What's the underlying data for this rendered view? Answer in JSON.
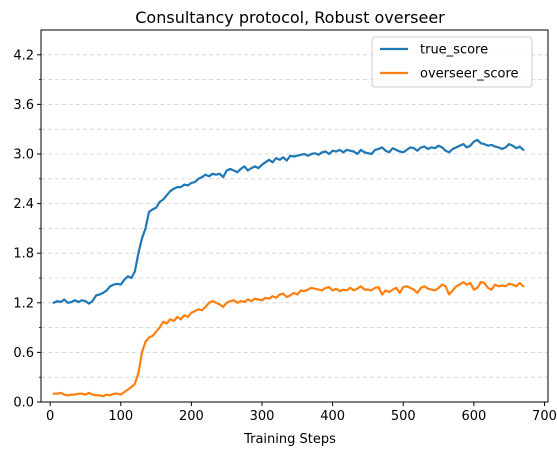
{
  "chart_data": {
    "type": "line",
    "title": "Consultancy protocol, Robust overseer",
    "xlabel": "Training Steps",
    "ylabel": "",
    "xlim": [
      -13,
      705
    ],
    "ylim": [
      0.0,
      4.5
    ],
    "xticks": [
      0,
      100,
      200,
      300,
      400,
      500,
      600,
      700
    ],
    "xtick_labels": [
      "0",
      "100",
      "200",
      "300",
      "400",
      "500",
      "600",
      "700"
    ],
    "yticks": [
      0.0,
      0.6,
      1.2,
      1.8,
      2.4,
      3.0,
      3.6,
      4.2
    ],
    "ytick_labels": [
      "0.0",
      "0.6",
      "1.2",
      "1.8",
      "2.4",
      "3.0",
      "3.6",
      "4.2"
    ],
    "y_minor_ticks": [
      0.3,
      0.9,
      1.5,
      2.1,
      2.7,
      3.3,
      3.9
    ],
    "grid": "horizontal dashed",
    "legend_position": "top-right",
    "series": [
      {
        "name": "true_score",
        "color": "#1f77b4",
        "x": [
          5,
          10,
          15,
          20,
          25,
          30,
          35,
          40,
          45,
          50,
          55,
          60,
          65,
          70,
          75,
          80,
          85,
          90,
          95,
          100,
          105,
          110,
          115,
          120,
          125,
          130,
          135,
          140,
          145,
          150,
          155,
          160,
          165,
          170,
          175,
          180,
          185,
          190,
          195,
          200,
          205,
          210,
          215,
          220,
          225,
          230,
          235,
          240,
          245,
          250,
          255,
          260,
          265,
          270,
          275,
          280,
          285,
          290,
          295,
          300,
          305,
          310,
          315,
          320,
          325,
          330,
          335,
          340,
          345,
          350,
          355,
          360,
          365,
          370,
          375,
          380,
          385,
          390,
          395,
          400,
          405,
          410,
          415,
          420,
          425,
          430,
          435,
          440,
          445,
          450,
          455,
          460,
          465,
          470,
          475,
          480,
          485,
          490,
          495,
          500,
          505,
          510,
          515,
          520,
          525,
          530,
          535,
          540,
          545,
          550,
          555,
          560,
          565,
          570,
          575,
          580,
          585,
          590,
          595,
          600,
          605,
          610,
          615,
          620,
          625,
          630,
          635,
          640,
          645,
          650,
          655,
          660,
          665,
          670
        ],
        "y": [
          1.2,
          1.22,
          1.21,
          1.24,
          1.2,
          1.21,
          1.23,
          1.21,
          1.23,
          1.22,
          1.19,
          1.22,
          1.29,
          1.3,
          1.32,
          1.35,
          1.4,
          1.42,
          1.43,
          1.42,
          1.48,
          1.52,
          1.5,
          1.58,
          1.8,
          1.98,
          2.1,
          2.3,
          2.33,
          2.35,
          2.42,
          2.45,
          2.5,
          2.55,
          2.58,
          2.6,
          2.6,
          2.63,
          2.62,
          2.65,
          2.66,
          2.7,
          2.72,
          2.75,
          2.73,
          2.76,
          2.75,
          2.76,
          2.72,
          2.8,
          2.82,
          2.8,
          2.78,
          2.82,
          2.85,
          2.8,
          2.83,
          2.85,
          2.83,
          2.87,
          2.9,
          2.93,
          2.9,
          2.95,
          2.93,
          2.96,
          2.92,
          2.98,
          2.97,
          2.98,
          2.99,
          3.0,
          2.98,
          3.0,
          3.01,
          2.99,
          3.02,
          3.03,
          3.0,
          3.04,
          3.03,
          3.05,
          3.02,
          3.05,
          3.04,
          3.03,
          3.0,
          3.05,
          3.02,
          3.01,
          3.0,
          3.05,
          3.06,
          3.08,
          3.04,
          3.02,
          3.07,
          3.05,
          3.03,
          3.02,
          3.05,
          3.08,
          3.07,
          3.04,
          3.08,
          3.09,
          3.06,
          3.08,
          3.07,
          3.1,
          3.08,
          3.04,
          3.02,
          3.06,
          3.08,
          3.1,
          3.12,
          3.08,
          3.1,
          3.15,
          3.17,
          3.13,
          3.12,
          3.1,
          3.11,
          3.09,
          3.08,
          3.06,
          3.08,
          3.12,
          3.1,
          3.07,
          3.09,
          3.05
        ]
      },
      {
        "name": "overseer_score",
        "color": "#ff7f0e",
        "x": [
          5,
          10,
          15,
          20,
          25,
          30,
          35,
          40,
          45,
          50,
          55,
          60,
          65,
          70,
          75,
          80,
          85,
          90,
          95,
          100,
          105,
          110,
          115,
          120,
          125,
          130,
          135,
          140,
          145,
          150,
          155,
          160,
          165,
          170,
          175,
          180,
          185,
          190,
          195,
          200,
          205,
          210,
          215,
          220,
          225,
          230,
          235,
          240,
          245,
          250,
          255,
          260,
          265,
          270,
          275,
          280,
          285,
          290,
          295,
          300,
          305,
          310,
          315,
          320,
          325,
          330,
          335,
          340,
          345,
          350,
          355,
          360,
          365,
          370,
          375,
          380,
          385,
          390,
          395,
          400,
          405,
          410,
          415,
          420,
          425,
          430,
          435,
          440,
          445,
          450,
          455,
          460,
          465,
          470,
          475,
          480,
          485,
          490,
          495,
          500,
          505,
          510,
          515,
          520,
          525,
          530,
          535,
          540,
          545,
          550,
          555,
          560,
          565,
          570,
          575,
          580,
          585,
          590,
          595,
          600,
          605,
          610,
          615,
          620,
          625,
          630,
          635,
          640,
          645,
          650,
          655,
          660,
          665,
          670
        ],
        "y": [
          0.1,
          0.1,
          0.11,
          0.09,
          0.08,
          0.09,
          0.09,
          0.1,
          0.1,
          0.09,
          0.11,
          0.09,
          0.08,
          0.08,
          0.07,
          0.09,
          0.08,
          0.1,
          0.1,
          0.09,
          0.12,
          0.15,
          0.18,
          0.22,
          0.35,
          0.6,
          0.73,
          0.78,
          0.8,
          0.85,
          0.9,
          0.97,
          0.95,
          1.0,
          0.98,
          1.03,
          1.0,
          1.05,
          1.03,
          1.08,
          1.1,
          1.12,
          1.11,
          1.15,
          1.2,
          1.22,
          1.2,
          1.18,
          1.15,
          1.2,
          1.22,
          1.23,
          1.2,
          1.22,
          1.21,
          1.24,
          1.22,
          1.25,
          1.24,
          1.23,
          1.26,
          1.25,
          1.28,
          1.26,
          1.3,
          1.31,
          1.27,
          1.29,
          1.32,
          1.3,
          1.35,
          1.34,
          1.36,
          1.38,
          1.37,
          1.36,
          1.35,
          1.38,
          1.39,
          1.35,
          1.37,
          1.34,
          1.36,
          1.35,
          1.38,
          1.35,
          1.37,
          1.4,
          1.36,
          1.36,
          1.35,
          1.38,
          1.39,
          1.3,
          1.35,
          1.33,
          1.36,
          1.38,
          1.32,
          1.39,
          1.4,
          1.38,
          1.36,
          1.32,
          1.38,
          1.4,
          1.37,
          1.36,
          1.35,
          1.38,
          1.42,
          1.4,
          1.3,
          1.35,
          1.4,
          1.42,
          1.45,
          1.42,
          1.44,
          1.36,
          1.38,
          1.45,
          1.44,
          1.38,
          1.36,
          1.42,
          1.4,
          1.41,
          1.4,
          1.43,
          1.42,
          1.4,
          1.44,
          1.4
        ]
      }
    ]
  }
}
